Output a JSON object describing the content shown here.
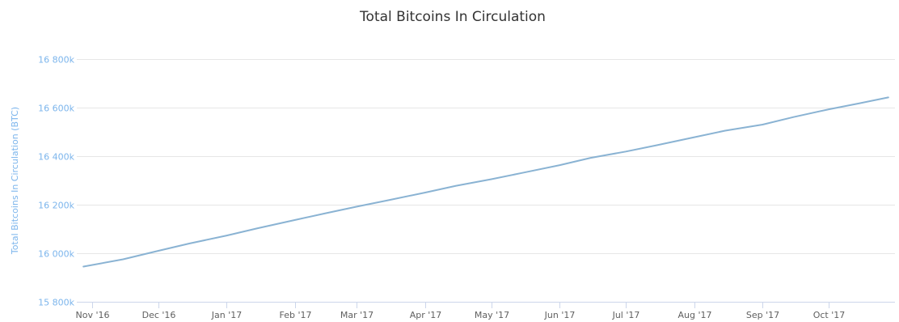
{
  "chart_data": {
    "type": "line",
    "title": "Total Bitcoins In Circulation",
    "ylabel": "Total Bitcoins In Circulation (BTC)",
    "xlabel": "",
    "ylim": [
      15800000,
      16800000
    ],
    "yticks": [
      {
        "value": 15800000,
        "label": "15 800k"
      },
      {
        "value": 16000000,
        "label": "16 000k"
      },
      {
        "value": 16200000,
        "label": "16 200k"
      },
      {
        "value": 16400000,
        "label": "16 400k"
      },
      {
        "value": 16600000,
        "label": "16 600k"
      },
      {
        "value": 16800000,
        "label": "16 800k"
      }
    ],
    "xlim": [
      "2016-10-25",
      "2017-10-31"
    ],
    "xticks": [
      {
        "value": "2016-11-01",
        "label": "Nov '16"
      },
      {
        "value": "2016-12-01",
        "label": "Dec '16"
      },
      {
        "value": "2017-01-01",
        "label": "Jan '17"
      },
      {
        "value": "2017-02-01",
        "label": "Feb '17"
      },
      {
        "value": "2017-03-01",
        "label": "Mar '17"
      },
      {
        "value": "2017-04-01",
        "label": "Apr '17"
      },
      {
        "value": "2017-05-01",
        "label": "May '17"
      },
      {
        "value": "2017-06-01",
        "label": "Jun '17"
      },
      {
        "value": "2017-07-01",
        "label": "Jul '17"
      },
      {
        "value": "2017-08-01",
        "label": "Aug '17"
      },
      {
        "value": "2017-09-01",
        "label": "Sep '17"
      },
      {
        "value": "2017-10-01",
        "label": "Oct '17"
      }
    ],
    "grid": true,
    "legend": "none",
    "colors": {
      "line": "#8ab3d3",
      "axis_text": "#7cb5ec",
      "grid": "#e6e6e6",
      "axis_line": "#ccd6eb"
    },
    "series": [
      {
        "x": [
          "2016-10-28",
          "2016-11-15",
          "2016-12-01",
          "2016-12-15",
          "2017-01-01",
          "2017-01-15",
          "2017-02-01",
          "2017-02-15",
          "2017-03-01",
          "2017-03-15",
          "2017-04-01",
          "2017-04-15",
          "2017-05-01",
          "2017-05-15",
          "2017-06-01",
          "2017-06-15",
          "2017-07-01",
          "2017-07-15",
          "2017-08-01",
          "2017-08-15",
          "2017-09-01",
          "2017-09-15",
          "2017-10-01",
          "2017-10-15",
          "2017-10-28"
        ],
        "values": [
          15945000,
          15975000,
          16010000,
          16040000,
          16073000,
          16103000,
          16137000,
          16165000,
          16192000,
          16218000,
          16250000,
          16278000,
          16305000,
          16331000,
          16363000,
          16393000,
          16419000,
          16445000,
          16478000,
          16505000,
          16530000,
          16561000,
          16593000,
          16618000,
          16642000
        ]
      }
    ]
  }
}
